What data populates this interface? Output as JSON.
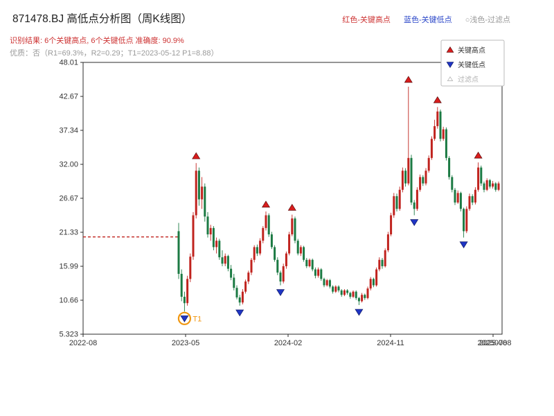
{
  "header": {
    "title": "871478.BJ 高低点分析图（周K线图）",
    "legend": [
      {
        "label": "红色-关键高点",
        "color": "#cd3333"
      },
      {
        "label": "蓝色-关键低点",
        "color": "#2a46c8"
      },
      {
        "label": "○浅色-过滤点",
        "color": "#9a9a9a"
      }
    ],
    "result_line": "识别结果: 6个关键高点, 6个关键低点  准确度: 90.9%",
    "quality_line": "优质：否（R1=69.3%，R2=0.29；T1=2023-05-12 P1=8.88）"
  },
  "chart_data": {
    "type": "candlestick",
    "interval": "weekly",
    "ylim": [
      5.323,
      48.01
    ],
    "yticks": [
      "48.01",
      "42.67",
      "37.34",
      "32.00",
      "26.67",
      "21.33",
      "15.99",
      "10.66",
      "5.323"
    ],
    "xticks": [
      "2022-08",
      "2023-05",
      "2024-02",
      "2024-11",
      "2025-08"
    ],
    "extra_x_label": "20250708",
    "up_color": "#c0231e",
    "down_color": "#1b7a43",
    "marker_high_color": "#d91d1d",
    "marker_low_color": "#1f35c4",
    "dashed_line_value": 20.6,
    "dashed_line_color": "#c0231e",
    "t1": {
      "label": "T1",
      "date": "2023-05-12",
      "price": 8.88,
      "color": "#f0960f"
    },
    "legend_items": [
      {
        "label": "关键高点",
        "marker": "triangle-up",
        "color": "#d91d1d"
      },
      {
        "label": "关键低点",
        "marker": "triangle-down",
        "color": "#1f35c4"
      },
      {
        "label": "过滤点",
        "marker": "triangle-up-hollow",
        "color": "#c9c9c9"
      }
    ],
    "key_highs": [
      {
        "i": 6,
        "v": 32.2
      },
      {
        "i": 30,
        "v": 24.6
      },
      {
        "i": 39,
        "v": 24.1
      },
      {
        "i": 79,
        "v": 44.2
      },
      {
        "i": 89,
        "v": 41.0
      },
      {
        "i": 103,
        "v": 32.3
      }
    ],
    "key_lows": [
      {
        "i": 2,
        "v": 8.88,
        "t1": true
      },
      {
        "i": 21,
        "v": 9.8
      },
      {
        "i": 35,
        "v": 13.0
      },
      {
        "i": 62,
        "v": 9.9
      },
      {
        "i": 81,
        "v": 24.0
      },
      {
        "i": 98,
        "v": 20.5
      }
    ],
    "candles": [
      [
        21.5,
        22.8,
        14.0,
        14.8
      ],
      [
        14.8,
        15.5,
        10.5,
        11.2
      ],
      [
        11.2,
        12.0,
        8.88,
        10.2
      ],
      [
        10.2,
        14.5,
        9.8,
        14.0
      ],
      [
        14.0,
        18.0,
        13.5,
        17.5
      ],
      [
        17.5,
        24.5,
        17.0,
        24.0
      ],
      [
        24.0,
        32.2,
        23.5,
        31.0
      ],
      [
        31.0,
        31.5,
        25.5,
        26.5
      ],
      [
        26.5,
        30.0,
        25.0,
        28.5
      ],
      [
        28.5,
        29.0,
        23.0,
        23.8
      ],
      [
        23.8,
        24.5,
        20.5,
        21.0
      ],
      [
        21.0,
        22.5,
        20.0,
        22.0
      ],
      [
        22.0,
        22.3,
        18.5,
        19.0
      ],
      [
        19.0,
        20.5,
        18.0,
        20.0
      ],
      [
        20.0,
        20.3,
        17.0,
        17.4
      ],
      [
        17.4,
        18.5,
        16.0,
        16.4
      ],
      [
        16.4,
        18.0,
        16.0,
        17.6
      ],
      [
        17.6,
        17.8,
        15.2,
        15.6
      ],
      [
        15.6,
        16.2,
        13.8,
        14.2
      ],
      [
        14.2,
        14.8,
        12.2,
        12.6
      ],
      [
        12.6,
        13.0,
        10.8,
        11.1
      ],
      [
        11.1,
        11.5,
        9.8,
        10.3
      ],
      [
        10.3,
        12.4,
        10.0,
        12.0
      ],
      [
        12.0,
        13.9,
        11.7,
        13.6
      ],
      [
        13.6,
        15.3,
        13.2,
        15.0
      ],
      [
        15.0,
        17.3,
        14.6,
        17.0
      ],
      [
        17.0,
        19.3,
        16.6,
        19.0
      ],
      [
        19.0,
        19.4,
        17.6,
        18.0
      ],
      [
        18.0,
        20.4,
        17.7,
        20.0
      ],
      [
        20.0,
        22.3,
        19.6,
        22.0
      ],
      [
        22.0,
        24.6,
        21.6,
        24.0
      ],
      [
        24.0,
        24.3,
        20.6,
        21.0
      ],
      [
        21.0,
        21.4,
        18.7,
        19.0
      ],
      [
        19.0,
        19.3,
        16.7,
        17.0
      ],
      [
        17.0,
        17.4,
        14.6,
        15.0
      ],
      [
        15.0,
        15.3,
        13.0,
        13.6
      ],
      [
        13.6,
        16.4,
        13.3,
        16.0
      ],
      [
        16.0,
        18.3,
        15.6,
        18.0
      ],
      [
        18.0,
        21.4,
        17.7,
        21.0
      ],
      [
        21.0,
        24.1,
        20.7,
        23.5
      ],
      [
        23.5,
        23.8,
        19.6,
        20.0
      ],
      [
        20.0,
        20.3,
        17.7,
        18.0
      ],
      [
        18.0,
        19.3,
        17.6,
        19.0
      ],
      [
        19.0,
        19.2,
        16.7,
        17.0
      ],
      [
        17.0,
        17.3,
        15.7,
        16.0
      ],
      [
        16.0,
        17.2,
        15.8,
        17.0
      ],
      [
        17.0,
        17.2,
        15.2,
        15.5
      ],
      [
        15.5,
        15.8,
        14.1,
        14.5
      ],
      [
        14.5,
        15.8,
        14.2,
        15.5
      ],
      [
        15.5,
        15.7,
        13.7,
        14.0
      ],
      [
        14.0,
        14.2,
        12.7,
        13.0
      ],
      [
        13.0,
        14.0,
        12.8,
        13.8
      ],
      [
        13.8,
        14.0,
        12.5,
        12.8
      ],
      [
        12.8,
        13.0,
        11.7,
        12.0
      ],
      [
        12.0,
        13.0,
        11.8,
        12.8
      ],
      [
        12.8,
        13.0,
        11.9,
        12.2
      ],
      [
        12.2,
        12.4,
        11.2,
        11.5
      ],
      [
        11.5,
        12.4,
        11.3,
        12.2
      ],
      [
        12.2,
        12.4,
        11.5,
        11.8
      ],
      [
        11.8,
        12.0,
        10.9,
        11.2
      ],
      [
        11.2,
        12.2,
        11.0,
        12.0
      ],
      [
        12.0,
        12.2,
        10.7,
        11.0
      ],
      [
        11.0,
        11.2,
        9.9,
        10.5
      ],
      [
        10.5,
        11.8,
        10.3,
        11.5
      ],
      [
        11.5,
        11.7,
        10.7,
        11.0
      ],
      [
        11.0,
        12.8,
        10.8,
        12.5
      ],
      [
        12.5,
        14.3,
        12.2,
        14.0
      ],
      [
        14.0,
        14.2,
        12.7,
        13.0
      ],
      [
        13.0,
        15.8,
        12.8,
        15.5
      ],
      [
        15.5,
        17.4,
        15.2,
        17.0
      ],
      [
        17.0,
        17.3,
        15.6,
        16.0
      ],
      [
        16.0,
        18.8,
        15.8,
        18.5
      ],
      [
        18.5,
        21.4,
        18.2,
        21.0
      ],
      [
        21.0,
        24.4,
        20.7,
        24.0
      ],
      [
        24.0,
        27.5,
        23.6,
        27.0
      ],
      [
        27.0,
        27.4,
        24.6,
        25.0
      ],
      [
        25.0,
        28.5,
        24.7,
        28.0
      ],
      [
        28.0,
        31.5,
        27.6,
        31.0
      ],
      [
        31.0,
        31.4,
        28.5,
        29.0
      ],
      [
        29.0,
        44.2,
        28.7,
        33.0
      ],
      [
        33.0,
        33.5,
        25.6,
        26.0
      ],
      [
        26.0,
        26.4,
        24.0,
        25.0
      ],
      [
        25.0,
        28.4,
        24.7,
        28.0
      ],
      [
        28.0,
        30.4,
        27.7,
        30.0
      ],
      [
        30.0,
        30.3,
        28.6,
        29.0
      ],
      [
        29.0,
        31.4,
        28.7,
        31.0
      ],
      [
        31.0,
        33.4,
        30.7,
        33.0
      ],
      [
        33.0,
        36.4,
        32.7,
        36.0
      ],
      [
        36.0,
        39.0,
        35.7,
        38.0
      ],
      [
        38.0,
        41.0,
        37.6,
        40.3
      ],
      [
        40.3,
        40.6,
        35.6,
        36.0
      ],
      [
        36.0,
        37.9,
        35.7,
        37.5
      ],
      [
        37.5,
        37.8,
        32.6,
        33.0
      ],
      [
        33.0,
        33.3,
        29.6,
        30.0
      ],
      [
        30.0,
        30.3,
        27.6,
        28.0
      ],
      [
        28.0,
        28.3,
        25.6,
        26.0
      ],
      [
        26.0,
        27.9,
        25.8,
        27.5
      ],
      [
        27.5,
        27.7,
        24.6,
        25.0
      ],
      [
        25.0,
        25.2,
        20.5,
        21.5
      ],
      [
        21.5,
        25.4,
        21.2,
        25.0
      ],
      [
        25.0,
        27.4,
        24.7,
        27.0
      ],
      [
        27.0,
        27.3,
        25.6,
        26.0
      ],
      [
        26.0,
        28.4,
        25.7,
        28.0
      ],
      [
        28.0,
        32.3,
        27.7,
        31.5
      ],
      [
        31.5,
        31.8,
        28.6,
        29.0
      ],
      [
        29.0,
        29.3,
        27.6,
        28.0
      ],
      [
        28.0,
        29.8,
        27.8,
        29.5
      ],
      [
        29.5,
        29.7,
        28.2,
        28.5
      ],
      [
        28.5,
        29.4,
        28.2,
        29.0
      ],
      [
        29.0,
        29.2,
        27.7,
        28.0
      ],
      [
        28.0,
        29.3,
        27.8,
        29.0
      ]
    ]
  }
}
